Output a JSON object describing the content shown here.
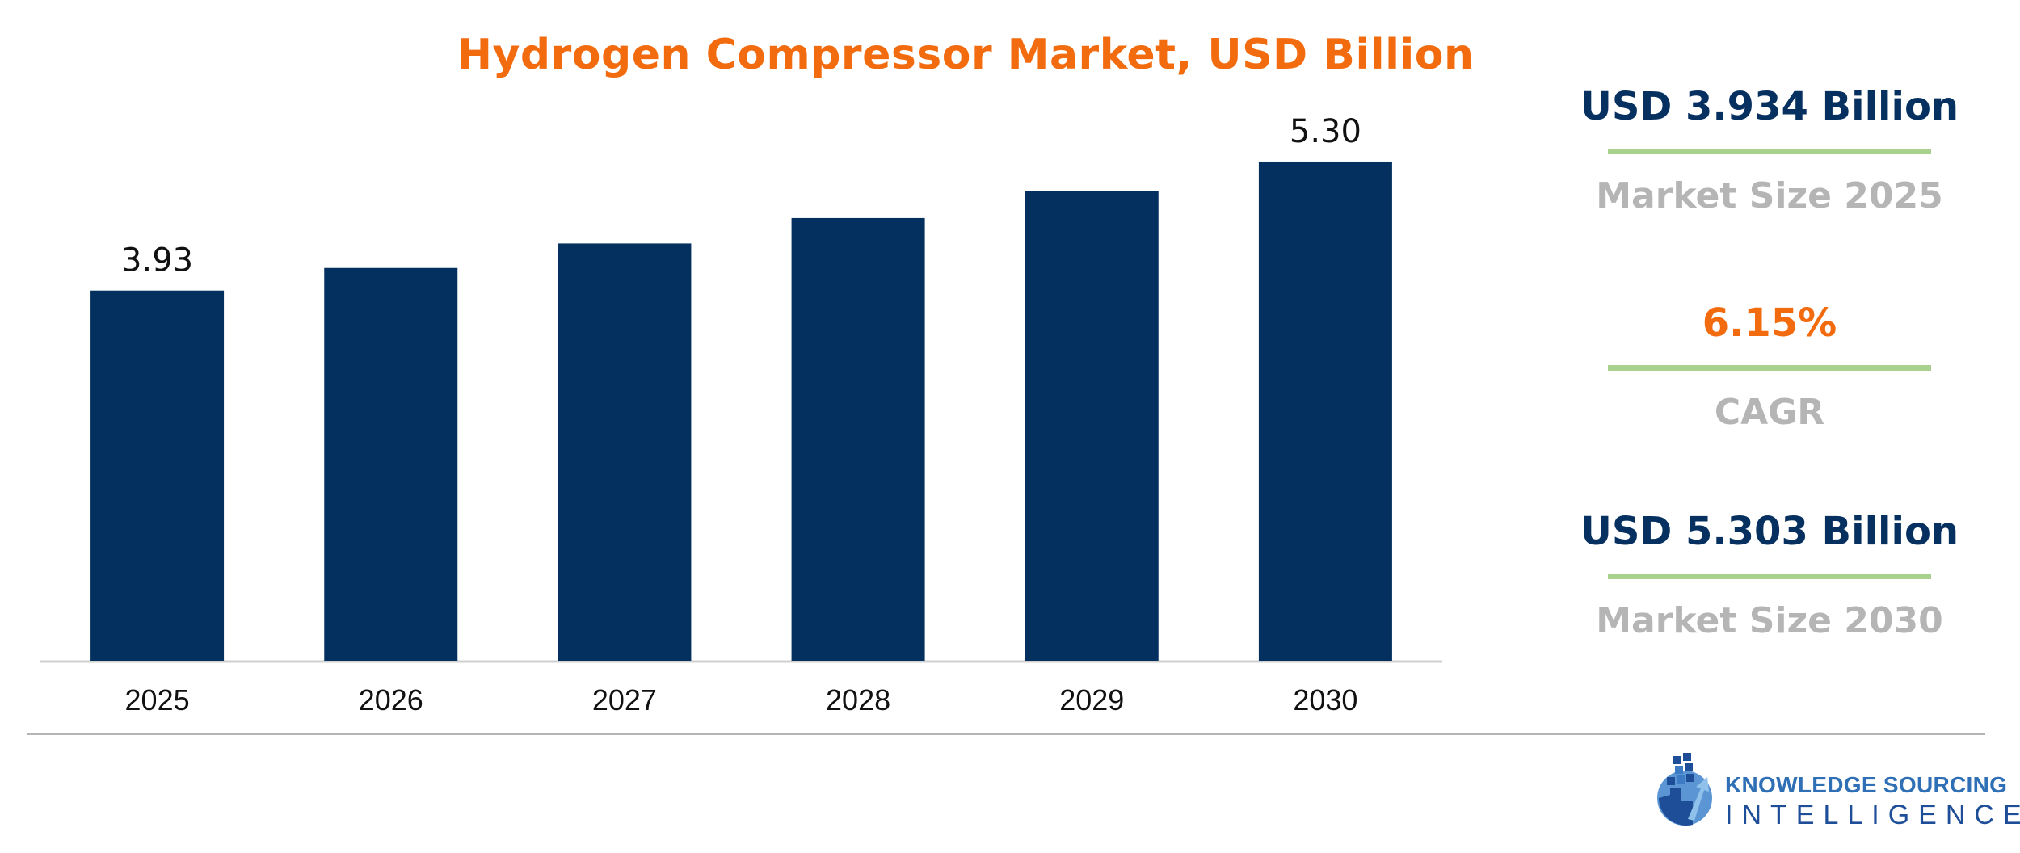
{
  "chart_data": {
    "type": "bar",
    "title": "Hydrogen Compressor Market, USD Billion",
    "categories": [
      "2025",
      "2026",
      "2027",
      "2028",
      "2029",
      "2030"
    ],
    "values": [
      3.93,
      4.17,
      4.43,
      4.7,
      4.99,
      5.3
    ],
    "data_labels": [
      "3.93",
      "",
      "",
      "",
      "",
      "5.30"
    ],
    "ylim": [
      0,
      5.9
    ],
    "grid": false,
    "bar_color": "#03305F"
  },
  "stats": [
    {
      "value": "USD 3.934 Billion",
      "label": "Market Size 2025",
      "value_color": "#06305F"
    },
    {
      "value": "6.15%",
      "label": "CAGR",
      "value_color": "#F26B0F"
    },
    {
      "value": "USD 5.303 Billion",
      "label": "Market Size 2030",
      "value_color": "#06305F"
    }
  ],
  "brand": {
    "line1": "KNOWLEDGE SOURCING",
    "line2": "INTELLIGENCE"
  },
  "colors": {
    "accent_orange": "#F26B0F",
    "navy": "#03305F",
    "rule_green": "#A9D18E",
    "label_gray": "#B5B5B5"
  }
}
